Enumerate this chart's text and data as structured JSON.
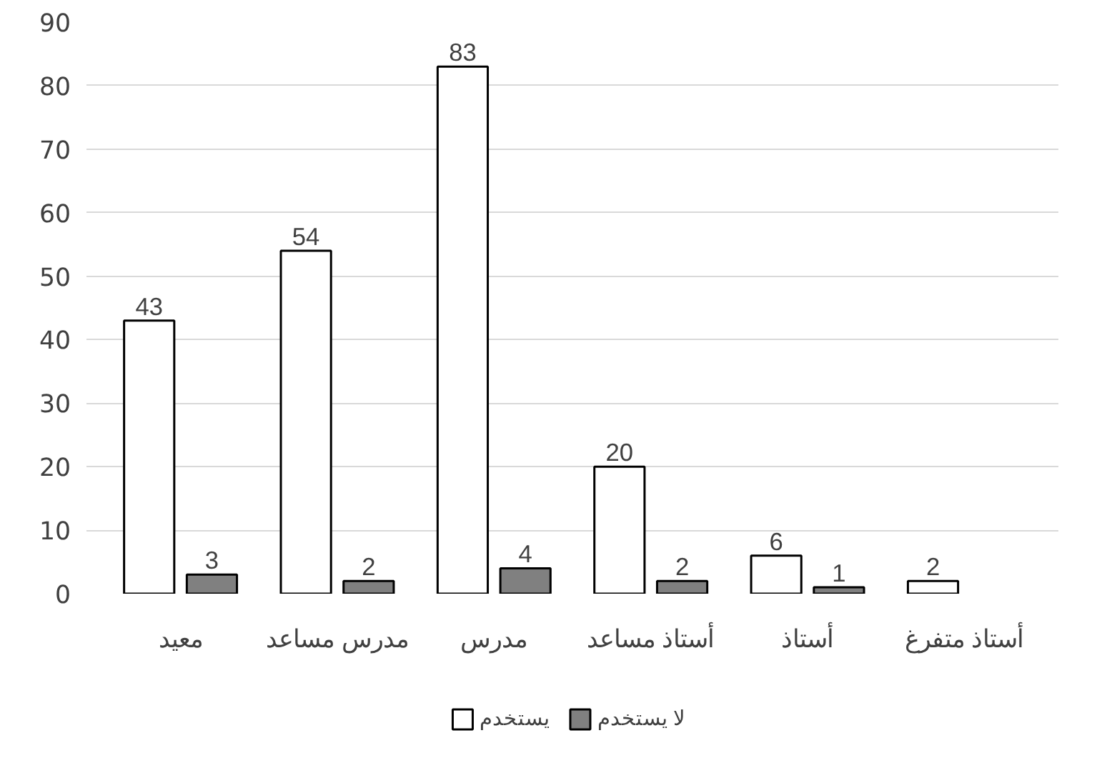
{
  "chart_data": {
    "type": "bar",
    "categories": [
      "معيد",
      "مدرس مساعد",
      "مدرس",
      "أستاذ مساعد",
      "أستاذ",
      "أستاذ متفرغ"
    ],
    "series": [
      {
        "name": "يستخدم",
        "color": "#ffffff",
        "values": [
          43,
          54,
          83,
          20,
          6,
          2
        ]
      },
      {
        "name": "لا يستخدم",
        "color": "#808080",
        "values": [
          3,
          2,
          4,
          2,
          1,
          null
        ]
      }
    ],
    "ylim": [
      0,
      90
    ],
    "yticks": [
      0,
      10,
      20,
      30,
      40,
      50,
      60,
      70,
      80,
      90
    ],
    "grid": "y",
    "legend": "bottom",
    "data_labels": true
  }
}
